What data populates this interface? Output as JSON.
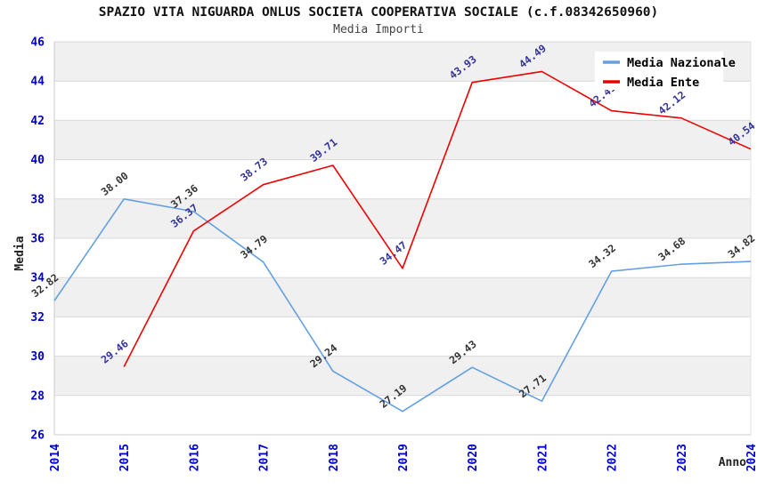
{
  "title": "SPAZIO VITA NIGUARDA ONLUS SOCIETA COOPERATIVA SOCIALE (c.f.08342650960)",
  "subtitle": "Media Importi",
  "chart_data": {
    "type": "line",
    "x": [
      2014,
      2015,
      2016,
      2017,
      2018,
      2019,
      2020,
      2021,
      2022,
      2023,
      2024
    ],
    "series": [
      {
        "name": "Media Nazionale",
        "color": "#64a0e1",
        "label_color": "#333333",
        "values": [
          32.82,
          38.0,
          37.36,
          34.79,
          29.24,
          27.19,
          29.43,
          27.71,
          34.32,
          34.68,
          34.82
        ]
      },
      {
        "name": "Media Ente",
        "color": "#ee0000",
        "label_color": "#333399",
        "values": [
          null,
          29.46,
          36.37,
          38.73,
          39.71,
          34.47,
          43.93,
          44.49,
          42.49,
          42.12,
          40.54
        ]
      }
    ],
    "xlabel": "Anno",
    "ylabel": "Media",
    "ylim": [
      26,
      46
    ],
    "yticks": [
      26,
      28,
      30,
      32,
      34,
      36,
      38,
      40,
      42,
      44,
      46
    ],
    "point_label_decimals": 2,
    "legend_position": "top-right",
    "grid": "horizontal-bands",
    "band_color": "#f0f0f0",
    "gridline_color": "#d9d9d9",
    "axis_border_color": "#cccccc",
    "tick_label_color": "#0000cc"
  }
}
